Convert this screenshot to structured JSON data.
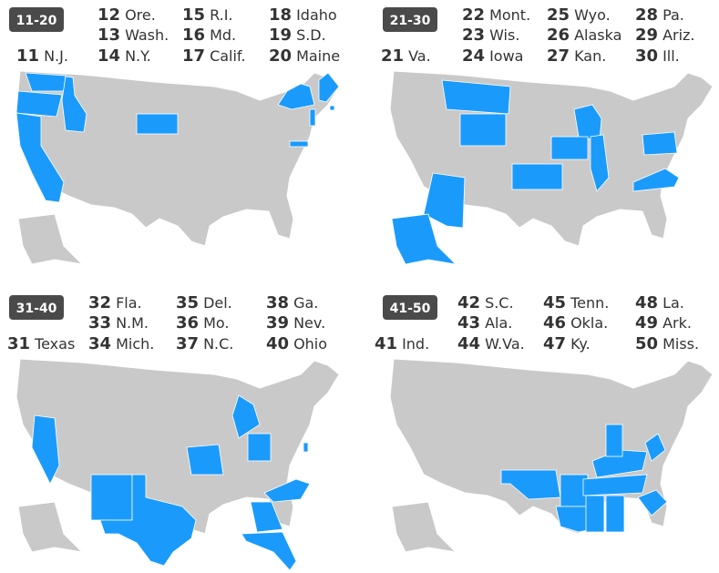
{
  "panels": [
    {
      "label": "11-20",
      "entries": [
        {
          "rank": 11,
          "state": "N.J."
        },
        {
          "rank": 12,
          "state": "Ore."
        },
        {
          "rank": 13,
          "state": "Wash."
        },
        {
          "rank": 14,
          "state": "N.Y."
        },
        {
          "rank": 15,
          "state": "R.I."
        },
        {
          "rank": 16,
          "state": "Md."
        },
        {
          "rank": 17,
          "state": "Calif."
        },
        {
          "rank": 18,
          "state": "Idaho"
        },
        {
          "rank": 19,
          "state": "S.D."
        },
        {
          "rank": 20,
          "state": "Maine"
        }
      ]
    },
    {
      "label": "21-30",
      "entries": [
        {
          "rank": 21,
          "state": "Va."
        },
        {
          "rank": 22,
          "state": "Mont."
        },
        {
          "rank": 23,
          "state": "Wis."
        },
        {
          "rank": 24,
          "state": "Iowa"
        },
        {
          "rank": 25,
          "state": "Wyo."
        },
        {
          "rank": 26,
          "state": "Alaska"
        },
        {
          "rank": 27,
          "state": "Kan."
        },
        {
          "rank": 28,
          "state": "Pa."
        },
        {
          "rank": 29,
          "state": "Ariz."
        },
        {
          "rank": 30,
          "state": "Ill."
        }
      ]
    },
    {
      "label": "31-40",
      "entries": [
        {
          "rank": 31,
          "state": "Texas"
        },
        {
          "rank": 32,
          "state": "Fla."
        },
        {
          "rank": 33,
          "state": "N.M."
        },
        {
          "rank": 34,
          "state": "Mich."
        },
        {
          "rank": 35,
          "state": "Del."
        },
        {
          "rank": 36,
          "state": "Mo."
        },
        {
          "rank": 37,
          "state": "N.C."
        },
        {
          "rank": 38,
          "state": "Ga."
        },
        {
          "rank": 39,
          "state": "Nev."
        },
        {
          "rank": 40,
          "state": "Ohio"
        }
      ]
    },
    {
      "label": "41-50",
      "entries": [
        {
          "rank": 41,
          "state": "Ind."
        },
        {
          "rank": 42,
          "state": "S.C."
        },
        {
          "rank": 43,
          "state": "Ala."
        },
        {
          "rank": 44,
          "state": "W.Va."
        },
        {
          "rank": 45,
          "state": "Tenn."
        },
        {
          "rank": 46,
          "state": "Okla."
        },
        {
          "rank": 47,
          "state": "Ky."
        },
        {
          "rank": 48,
          "state": "La."
        },
        {
          "rank": 49,
          "state": "Ark."
        },
        {
          "rank": 50,
          "state": "Miss."
        }
      ]
    }
  ]
}
